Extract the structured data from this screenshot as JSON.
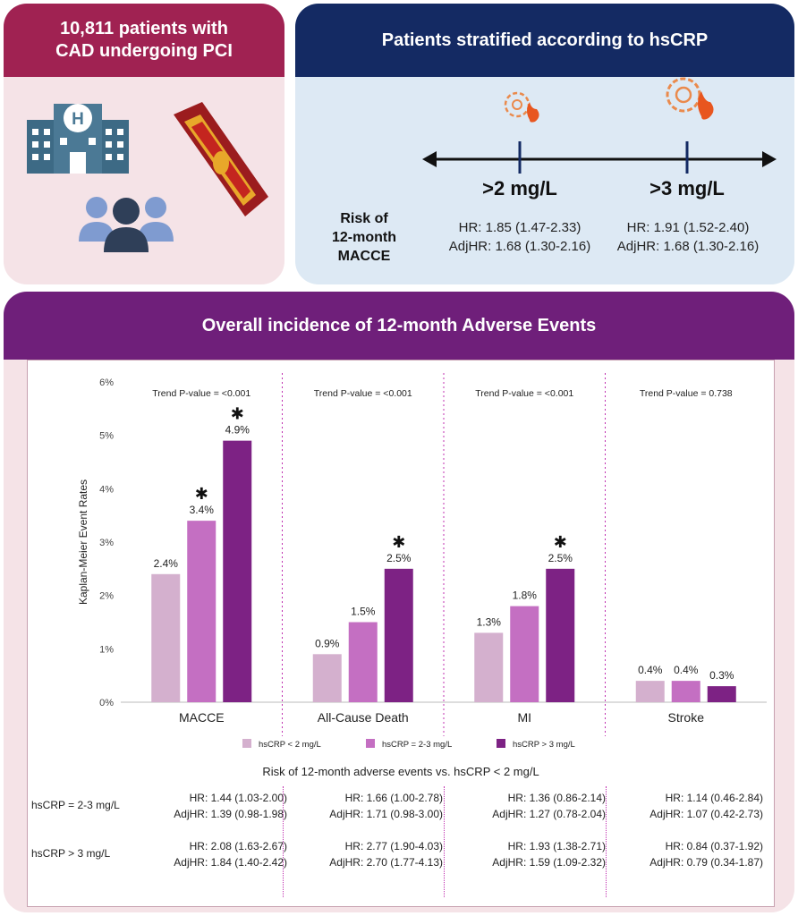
{
  "left_panel": {
    "title_line1": "10,811 patients with",
    "title_line2": "CAD undergoing PCI"
  },
  "right_panel": {
    "title": "Patients stratified according to hsCRP",
    "threshold1": ">2 mg/L",
    "threshold2": ">3 mg/L",
    "risk_line1": "Risk of",
    "risk_line2": "12-month",
    "risk_line3": "MACCE",
    "t1_hr": "HR: 1.85 (1.47-2.33)",
    "t1_adj": "AdjHR: 1.68 (1.30-2.16)",
    "t2_hr": "HR: 1.91 (1.52-2.40)",
    "t2_adj": "AdjHR: 1.68 (1.30-2.16)"
  },
  "bottom_panel": {
    "title": "Overall incidence of 12-month Adverse Events",
    "risk_caption": "Risk of 12-month adverse events vs. hsCRP < 2 mg/L",
    "rows": [
      {
        "label": "hsCRP = 2-3 mg/L",
        "cells": [
          {
            "hr": "HR: 1.44 (1.03-2.00)",
            "adj": "AdjHR: 1.39 (0.98-1.98)"
          },
          {
            "hr": "HR: 1.66 (1.00-2.78)",
            "adj": "AdjHR: 1.71 (0.98-3.00)"
          },
          {
            "hr": "HR: 1.36 (0.86-2.14)",
            "adj": "AdjHR: 1.27 (0.78-2.04)"
          },
          {
            "hr": "HR: 1.14 (0.46-2.84)",
            "adj": "AdjHR: 1.07 (0.42-2.73)"
          }
        ]
      },
      {
        "label": "hsCRP > 3 mg/L",
        "cells": [
          {
            "hr": "HR: 2.08 (1.63-2.67)",
            "adj": "AdjHR: 1.84 (1.40-2.42)"
          },
          {
            "hr": "HR: 2.77 (1.90-4.03)",
            "adj": "AdjHR: 2.70 (1.77-4.13)"
          },
          {
            "hr": "HR: 1.93 (1.38-2.71)",
            "adj": "AdjHR: 1.59 (1.09-2.32)"
          },
          {
            "hr": "HR: 0.84 (0.37-1.92)",
            "adj": "AdjHR: 0.79 (0.34-1.87)"
          }
        ]
      }
    ]
  },
  "colors": {
    "light_series": "#d4b0ce",
    "mid_series": "#c46fc2",
    "dark_series": "#7d2284"
  },
  "icons": [
    "hospital-icon",
    "artery-icon",
    "patients-icon",
    "inflammation-icon"
  ],
  "chart_data": {
    "type": "bar",
    "ylabel": "Kaplan-Meier Event Rates",
    "ylim": [
      0,
      6
    ],
    "yticks": [
      "0%",
      "1%",
      "2%",
      "3%",
      "4%",
      "5%",
      "6%"
    ],
    "categories": [
      "MACCE",
      "All-Cause Death",
      "MI",
      "Stroke"
    ],
    "trend_labels": [
      "Trend P-value = <0.001",
      "Trend P-value = <0.001",
      "Trend P-value = <0.001",
      "Trend P-value = 0.738"
    ],
    "series": [
      {
        "name": "hsCRP < 2 mg/L",
        "values": [
          2.4,
          0.9,
          1.3,
          0.4
        ],
        "labels": [
          "2.4%",
          "0.9%",
          "1.3%",
          "0.4%"
        ],
        "significant": [
          false,
          false,
          false,
          false
        ]
      },
      {
        "name": "hsCRP = 2-3 mg/L",
        "values": [
          3.4,
          1.5,
          1.8,
          0.4
        ],
        "labels": [
          "3.4%",
          "1.5%",
          "1.8%",
          "0.4%"
        ],
        "significant": [
          true,
          false,
          false,
          false
        ]
      },
      {
        "name": "hsCRP > 3 mg/L",
        "values": [
          4.9,
          2.5,
          2.5,
          0.3
        ],
        "labels": [
          "4.9%",
          "2.5%",
          "2.5%",
          "0.3%"
        ],
        "significant": [
          true,
          true,
          true,
          false
        ]
      }
    ],
    "significance_marker": "✱",
    "legend_position": "bottom"
  }
}
